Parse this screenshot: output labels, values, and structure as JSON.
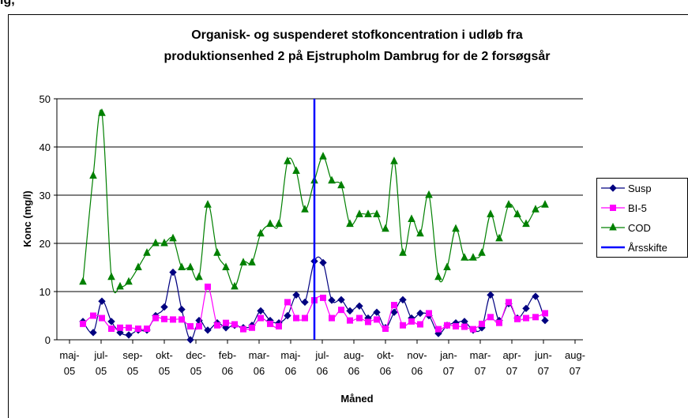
{
  "caption": "ig,",
  "chart_data": {
    "type": "line",
    "title": [
      "Organisk- og suspenderet stofkoncentration i udløb fra",
      "produktionsenhed 2 på Ejstrupholm Dambrug for de 2 forsøgsår"
    ],
    "x_label": "Måned",
    "y_label": "Konc (mg/l)",
    "x": [
      0.85,
      1.5,
      2.05,
      2.65,
      3.2,
      3.75,
      4.35,
      4.9,
      5.45,
      6,
      6.55,
      7.1,
      7.65,
      8.2,
      8.75,
      9.35,
      9.9,
      10.45,
      11,
      11.55,
      12.1,
      12.7,
      13.25,
      13.8,
      14.35,
      14.9,
      15.5,
      16.05,
      16.6,
      17.2,
      17.75,
      18.35,
      18.9,
      19.45,
      20,
      20.55,
      21.1,
      21.65,
      22.2,
      22.75,
      23.35,
      23.9,
      24.45,
      25,
      25.55,
      26.1,
      26.65,
      27.2,
      27.8,
      28.35,
      28.9,
      29.5,
      30.1
    ],
    "series": [
      {
        "name": "Susp",
        "color": "#000080",
        "marker": "diamond",
        "values": [
          3.8,
          1.5,
          8,
          3.8,
          1.5,
          1,
          2,
          2,
          5,
          6.8,
          14,
          6.3,
          0,
          4,
          2,
          3.5,
          2.5,
          3,
          2.5,
          3,
          6,
          4,
          3.5,
          5,
          9.3,
          7.8,
          16.3,
          16,
          8.2,
          8.3,
          6,
          7,
          4.5,
          5.7,
          2.5,
          5.7,
          8.3,
          4.5,
          5.5,
          5,
          1.3,
          3,
          3.5,
          3.8,
          2,
          2.5,
          9.3,
          4,
          7.5,
          4.5,
          6.5,
          9,
          4
        ]
      },
      {
        "name": "BI-5",
        "color": "#ff00ff",
        "marker": "square",
        "values": [
          3.3,
          5,
          4.5,
          2.3,
          2.5,
          2.5,
          2.3,
          2.3,
          4.5,
          4.3,
          4.2,
          4.2,
          2.8,
          2.8,
          11,
          3,
          3.5,
          3.2,
          2.2,
          2.5,
          4.5,
          3.3,
          2.8,
          7.8,
          4.5,
          4.5,
          8.2,
          8.7,
          4.5,
          6.2,
          4,
          4.5,
          3.7,
          4.2,
          2.3,
          7.2,
          3,
          3.8,
          3.2,
          5.5,
          2.2,
          3,
          2.8,
          2.7,
          2.2,
          3.3,
          4.7,
          3.5,
          7.8,
          4.3,
          4.5,
          4.7,
          5.5
        ]
      },
      {
        "name": "COD",
        "color": "#008000",
        "marker": "triangle",
        "values": [
          12,
          34,
          47,
          13,
          11,
          12,
          15,
          18,
          20,
          20,
          21,
          15,
          15,
          13,
          28,
          18,
          15,
          11,
          16,
          16,
          22,
          24,
          24,
          37,
          35,
          27,
          33,
          38,
          33,
          32,
          24,
          26,
          26,
          26,
          23,
          37,
          18,
          25,
          22,
          30,
          13,
          15,
          23,
          17,
          17,
          18,
          26,
          21,
          28,
          26,
          24,
          27,
          28
        ]
      },
      {
        "name": "Årsskifte",
        "color": "#0000ff",
        "marker": "none",
        "x": [
          15.5,
          15.5
        ],
        "values": [
          0,
          50
        ]
      }
    ],
    "xlim": [
      -0.8,
      32.5
    ],
    "xticks": [
      {
        "value": 0,
        "label": "maj-05"
      },
      {
        "value": 2,
        "label": "jul-05"
      },
      {
        "value": 4,
        "label": "sep-05"
      },
      {
        "value": 6,
        "label": "okt-05"
      },
      {
        "value": 8,
        "label": "dec-05"
      },
      {
        "value": 10,
        "label": "feb-06"
      },
      {
        "value": 12,
        "label": "mar-06"
      },
      {
        "value": 14,
        "label": "maj-06"
      },
      {
        "value": 16,
        "label": "jul-06"
      },
      {
        "value": 18,
        "label": "aug-06"
      },
      {
        "value": 20,
        "label": "okt-06"
      },
      {
        "value": 22,
        "label": "nov-06"
      },
      {
        "value": 24,
        "label": "jan-07"
      },
      {
        "value": 26,
        "label": "mar-07"
      },
      {
        "value": 28,
        "label": "apr-07"
      },
      {
        "value": 30,
        "label": "jun-07"
      },
      {
        "value": 32,
        "label": "aug-07"
      }
    ],
    "ylim": [
      0,
      50
    ],
    "yticks": [
      0,
      10,
      20,
      30,
      40,
      50
    ],
    "grid": true,
    "legend": "right"
  }
}
